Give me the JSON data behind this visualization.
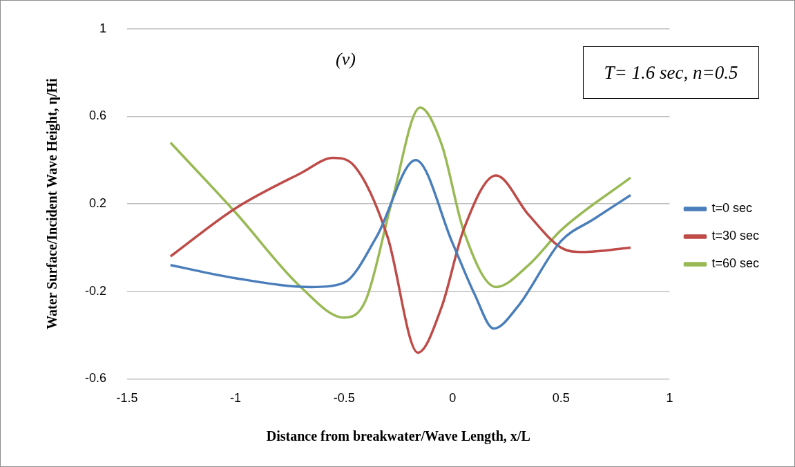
{
  "chart_data": {
    "type": "line",
    "xlabel": "Distance from breakwater/Wave Length, x/L",
    "ylabel": "Water Surface/Incident Wave Height, η/Hi",
    "annotations": [
      "(v)",
      "T= 1.6 sec, n=0.5"
    ],
    "xlim": [
      -1.5,
      1
    ],
    "xticks": [
      -1.5,
      -1,
      -0.5,
      0,
      0.5,
      1
    ],
    "ylim": [
      -0.6,
      1
    ],
    "yticks": [
      -0.6,
      -0.2,
      0.2,
      0.6,
      1
    ],
    "grid": "y",
    "legend": "right",
    "marker": "none",
    "line_style": "solid",
    "series": [
      {
        "name": "t=0 sec",
        "color": "#4a7ebb",
        "x": [
          -1.3,
          -1.0,
          -0.65,
          -0.5,
          -0.35,
          -0.17,
          0,
          0.1,
          0.19,
          0.3,
          0.5,
          0.65,
          0.82
        ],
        "values": [
          -0.08,
          -0.14,
          -0.18,
          -0.16,
          0.05,
          0.4,
          0.02,
          -0.21,
          -0.37,
          -0.27,
          0.03,
          0.13,
          0.24
        ]
      },
      {
        "name": "t=30 sec",
        "color": "#be4b48",
        "x": [
          -1.3,
          -1.0,
          -0.7,
          -0.55,
          -0.45,
          -0.3,
          -0.16,
          -0.05,
          0.05,
          0.2,
          0.35,
          0.5,
          0.6,
          0.82
        ],
        "values": [
          -0.04,
          0.18,
          0.34,
          0.41,
          0.37,
          0.05,
          -0.48,
          -0.27,
          0.08,
          0.33,
          0.15,
          0.0,
          -0.02,
          0.0
        ]
      },
      {
        "name": "t=60 sec",
        "color": "#98b954",
        "x": [
          -1.3,
          -1.0,
          -0.7,
          -0.5,
          -0.4,
          -0.28,
          -0.15,
          -0.05,
          0.05,
          0.2,
          0.35,
          0.5,
          0.82
        ],
        "values": [
          0.48,
          0.16,
          -0.18,
          -0.32,
          -0.24,
          0.21,
          0.64,
          0.47,
          0.08,
          -0.18,
          -0.08,
          0.08,
          0.32
        ]
      }
    ]
  }
}
